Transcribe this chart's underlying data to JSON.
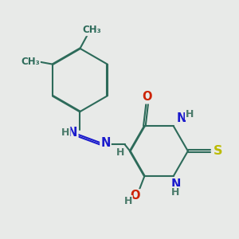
{
  "background_color": "#e8eae8",
  "bond_color": "#2d6b5a",
  "bond_width": 1.5,
  "atom_colors": {
    "C": "#2d6b5a",
    "N": "#1a1acc",
    "O": "#cc2200",
    "S": "#bbbb00",
    "H": "#4a7a6a"
  },
  "font_size": 10.5
}
